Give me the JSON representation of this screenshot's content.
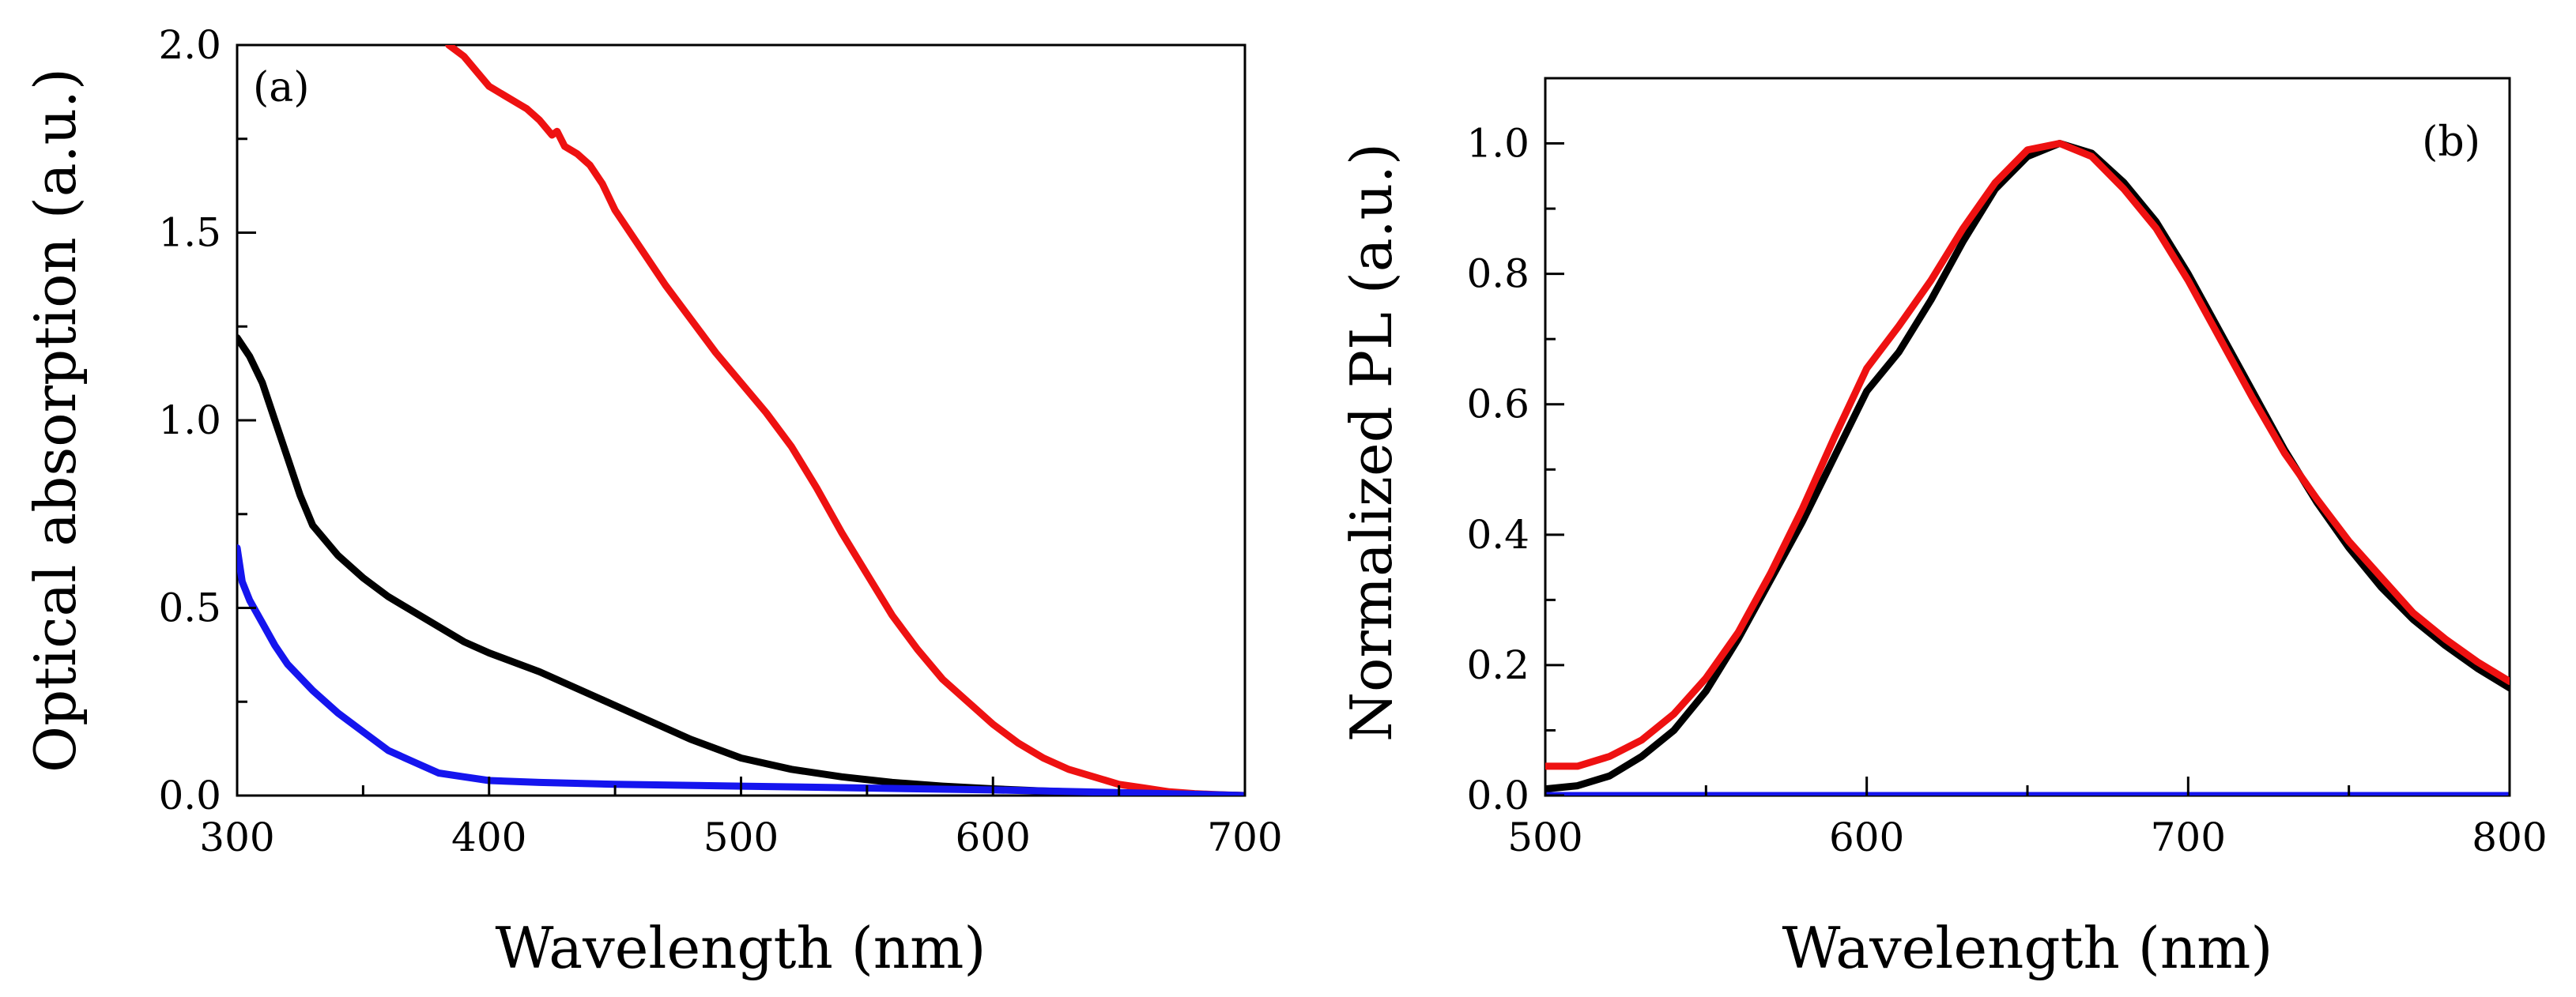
{
  "chart_data": [
    {
      "type": "line",
      "panel_label": "(a)",
      "xlabel": "Wavelength (nm)",
      "ylabel": "Optical absorption (a.u.)",
      "xlim": [
        300,
        700
      ],
      "ylim": [
        0,
        2.0
      ],
      "xticks": [
        300,
        400,
        500,
        600,
        700
      ],
      "xtick_labels": [
        "300",
        "400",
        "500",
        "600",
        "700"
      ],
      "yticks": [
        0,
        0.5,
        1.0,
        1.5,
        2.0
      ],
      "ytick_labels": [
        "0.0",
        "0.5",
        "1.0",
        "1.5",
        "2.0"
      ],
      "series": [
        {
          "name": "red",
          "color": "#ee1111",
          "x": [
            384,
            390,
            395,
            400,
            405,
            410,
            415,
            420,
            425,
            427,
            430,
            435,
            440,
            445,
            450,
            460,
            470,
            480,
            490,
            500,
            510,
            520,
            530,
            540,
            550,
            560,
            570,
            580,
            590,
            600,
            610,
            620,
            630,
            640,
            650,
            660,
            670,
            680,
            690,
            700
          ],
          "y": [
            2.0,
            1.97,
            1.93,
            1.89,
            1.87,
            1.85,
            1.83,
            1.8,
            1.76,
            1.77,
            1.73,
            1.71,
            1.68,
            1.63,
            1.56,
            1.46,
            1.36,
            1.27,
            1.18,
            1.1,
            1.02,
            0.93,
            0.82,
            0.7,
            0.59,
            0.48,
            0.39,
            0.31,
            0.25,
            0.19,
            0.14,
            0.1,
            0.07,
            0.05,
            0.03,
            0.02,
            0.01,
            0.005,
            0.002,
            0.0
          ]
        },
        {
          "name": "black",
          "color": "#000000",
          "x": [
            300,
            305,
            310,
            315,
            320,
            325,
            330,
            340,
            350,
            360,
            370,
            380,
            390,
            400,
            420,
            440,
            460,
            480,
            500,
            520,
            540,
            560,
            580,
            600,
            620,
            640,
            660,
            680,
            700
          ],
          "y": [
            1.22,
            1.17,
            1.1,
            1.0,
            0.9,
            0.8,
            0.72,
            0.64,
            0.58,
            0.53,
            0.49,
            0.45,
            0.41,
            0.38,
            0.33,
            0.27,
            0.21,
            0.15,
            0.1,
            0.07,
            0.05,
            0.035,
            0.025,
            0.018,
            0.012,
            0.008,
            0.005,
            0.003,
            0.0
          ]
        },
        {
          "name": "blue",
          "color": "#1515ee",
          "x": [
            300,
            302,
            305,
            310,
            315,
            320,
            330,
            340,
            350,
            360,
            370,
            380,
            390,
            400,
            420,
            450,
            500,
            550,
            600,
            650,
            700
          ],
          "y": [
            0.66,
            0.57,
            0.52,
            0.46,
            0.4,
            0.35,
            0.28,
            0.22,
            0.17,
            0.12,
            0.09,
            0.06,
            0.05,
            0.04,
            0.035,
            0.03,
            0.025,
            0.02,
            0.015,
            0.008,
            0.0
          ]
        }
      ]
    },
    {
      "type": "line",
      "panel_label": "(b)",
      "xlabel": "Wavelength (nm)",
      "ylabel": "Normalized PL (a.u.)",
      "xlim": [
        500,
        800
      ],
      "ylim": [
        0,
        1.1
      ],
      "xticks": [
        500,
        600,
        700,
        800
      ],
      "xtick_labels": [
        "500",
        "600",
        "700",
        "800"
      ],
      "yticks": [
        0,
        0.2,
        0.4,
        0.6,
        0.8,
        1.0
      ],
      "ytick_labels": [
        "0.0",
        "0.2",
        "0.4",
        "0.6",
        "0.8",
        "1.0"
      ],
      "series": [
        {
          "name": "black",
          "color": "#000000",
          "x": [
            500,
            510,
            520,
            530,
            540,
            550,
            560,
            570,
            580,
            590,
            600,
            610,
            620,
            630,
            640,
            650,
            660,
            670,
            680,
            690,
            700,
            710,
            720,
            730,
            740,
            750,
            760,
            770,
            780,
            790,
            800
          ],
          "y": [
            0.01,
            0.015,
            0.03,
            0.06,
            0.1,
            0.16,
            0.24,
            0.33,
            0.42,
            0.52,
            0.62,
            0.68,
            0.76,
            0.85,
            0.93,
            0.98,
            1.0,
            0.985,
            0.94,
            0.88,
            0.8,
            0.71,
            0.62,
            0.53,
            0.45,
            0.38,
            0.32,
            0.27,
            0.23,
            0.195,
            0.165
          ]
        },
        {
          "name": "red",
          "color": "#ee1111",
          "x": [
            500,
            510,
            520,
            530,
            540,
            550,
            560,
            570,
            580,
            590,
            600,
            610,
            620,
            630,
            640,
            650,
            660,
            670,
            680,
            690,
            700,
            710,
            720,
            730,
            740,
            750,
            760,
            770,
            780,
            790,
            800
          ],
          "y": [
            0.045,
            0.045,
            0.06,
            0.085,
            0.125,
            0.18,
            0.25,
            0.34,
            0.44,
            0.55,
            0.655,
            0.72,
            0.79,
            0.87,
            0.94,
            0.99,
            1.0,
            0.98,
            0.93,
            0.87,
            0.79,
            0.7,
            0.61,
            0.525,
            0.455,
            0.39,
            0.335,
            0.28,
            0.24,
            0.205,
            0.175
          ]
        },
        {
          "name": "blue",
          "color": "#1515ee",
          "x": [
            500,
            800
          ],
          "y": [
            0.0,
            0.0
          ]
        }
      ]
    }
  ]
}
